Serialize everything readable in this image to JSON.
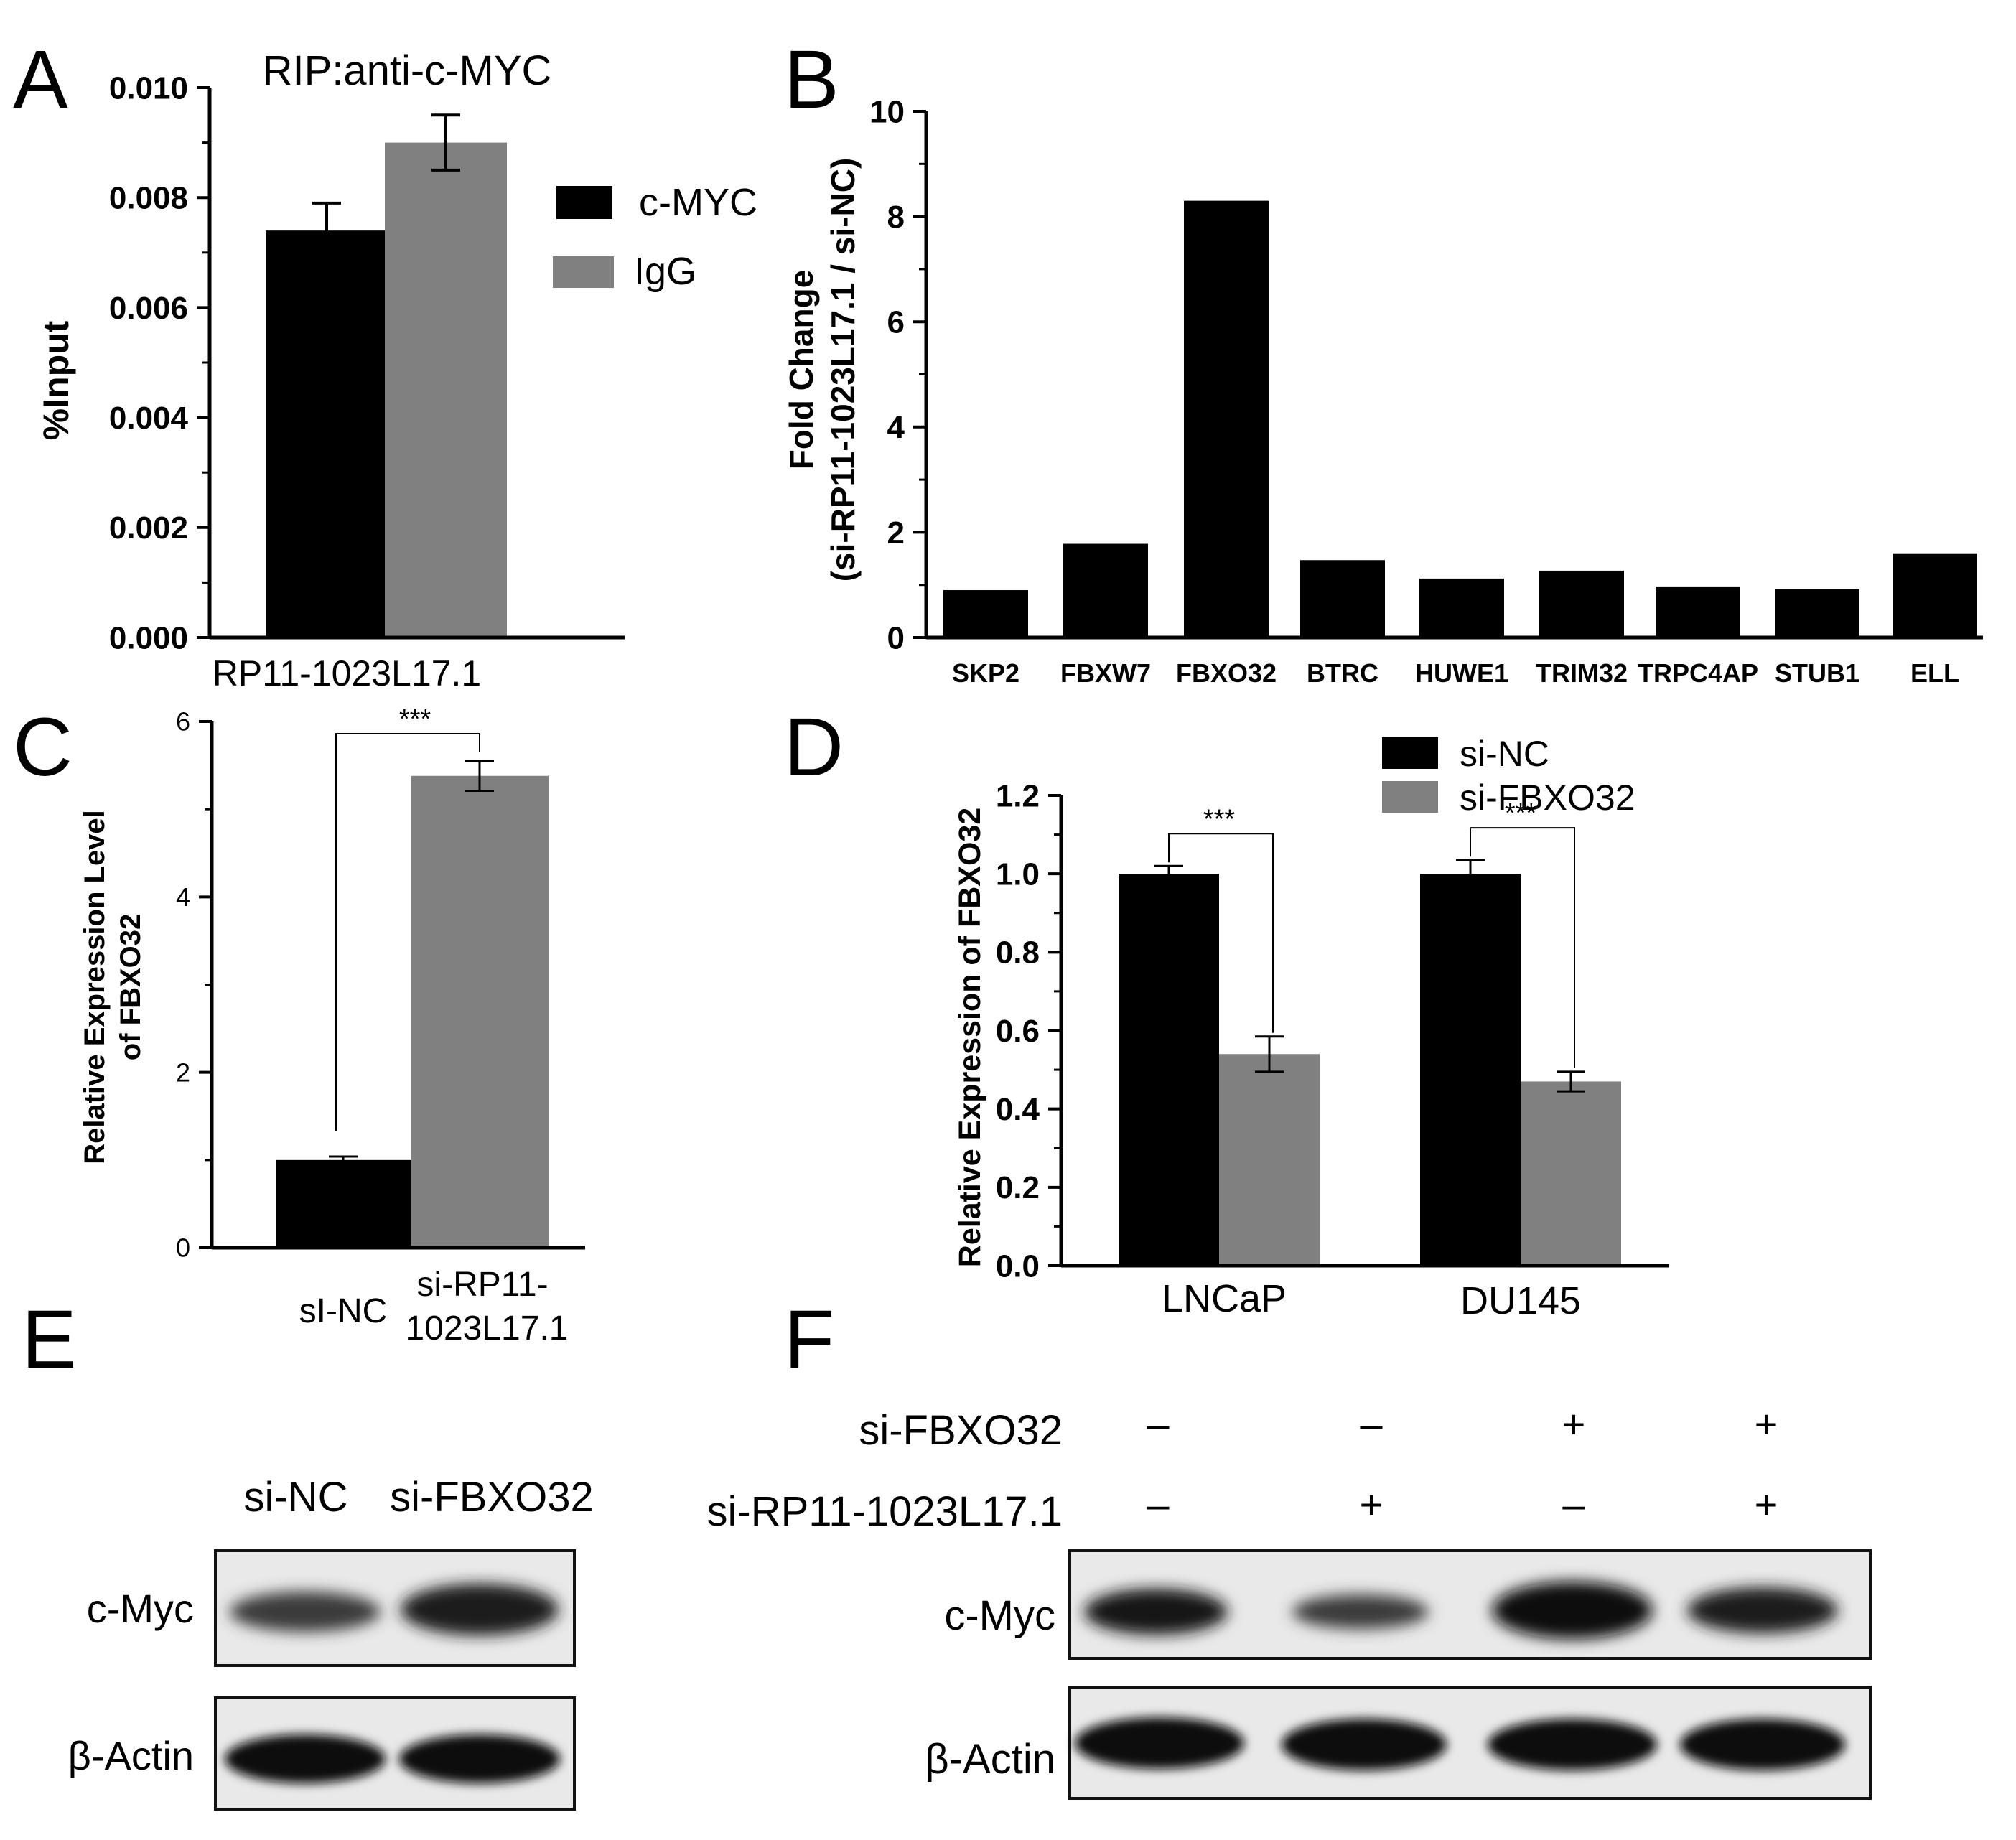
{
  "colors": {
    "black_series": "#000000",
    "gray_series": "#808080",
    "axis": "#000000"
  },
  "chart_data": [
    {
      "panel": "A",
      "type": "bar",
      "title": "RIP:anti-c-MYC",
      "ylabel": "%Input",
      "xlabel": "",
      "categories": [
        "RP11-1023L17.1"
      ],
      "ylim": [
        0,
        0.01
      ],
      "yticks": [
        "0.000",
        "0.002",
        "0.004",
        "0.006",
        "0.008",
        "0.010"
      ],
      "ytick_values": [
        0,
        0.002,
        0.004,
        0.006,
        0.008,
        0.01
      ],
      "legend_position": "right",
      "series": [
        {
          "name": "c-MYC",
          "color": "#000000",
          "values": [
            0.0074
          ],
          "errors": [
            0.0005
          ]
        },
        {
          "name": "IgG",
          "color": "#808080",
          "values": [
            0.009
          ],
          "errors": [
            0.0005
          ]
        }
      ]
    },
    {
      "panel": "B",
      "type": "bar",
      "ylabel_line1": "Fold Change",
      "ylabel_line2": "(si-RP11-1023L17.1 / si-NC)",
      "categories": [
        "SKP2",
        "FBXW7",
        "FBXO32",
        "BTRC",
        "HUWE1",
        "TRIM32",
        "TRPC4AP",
        "STUB1",
        "ELL"
      ],
      "values": [
        0.9,
        1.78,
        8.3,
        1.47,
        1.12,
        1.27,
        0.97,
        0.92,
        1.6
      ],
      "ylim": [
        0,
        10
      ],
      "yticks": [
        "0",
        "2",
        "4",
        "6",
        "8",
        "10"
      ],
      "ytick_values": [
        0,
        2,
        4,
        6,
        8,
        10
      ]
    },
    {
      "panel": "C",
      "type": "bar",
      "ylabel_line1": "Relative Expression Level",
      "ylabel_line2": "of FBXO32",
      "categories": [
        "sI-NC",
        "si-RP11-1023L17.1"
      ],
      "category_lines": [
        [
          "sI-NC"
        ],
        [
          "si-RP11-",
          "1023L17.1"
        ]
      ],
      "values": [
        1.0,
        5.38
      ],
      "errors": [
        0.04,
        0.17
      ],
      "colors": [
        "#000000",
        "#808080"
      ],
      "ylim": [
        0,
        6
      ],
      "yticks": [
        "0",
        "2",
        "4",
        "6"
      ],
      "ytick_values": [
        0,
        2,
        4,
        6
      ],
      "significance": "***"
    },
    {
      "panel": "D",
      "type": "bar",
      "ylabel": "Relative Expression of FBXO32",
      "categories": [
        "LNCaP",
        "DU145"
      ],
      "ylim": [
        0,
        1.2
      ],
      "yticks": [
        "0.0",
        "0.2",
        "0.4",
        "0.6",
        "0.8",
        "1.0",
        "1.2"
      ],
      "ytick_values": [
        0,
        0.2,
        0.4,
        0.6,
        0.8,
        1.0,
        1.2
      ],
      "legend_position": "top",
      "series": [
        {
          "name": "si-NC",
          "color": "#000000",
          "values": [
            1.0,
            1.0
          ],
          "errors": [
            0.02,
            0.035
          ]
        },
        {
          "name": "si-FBXO32",
          "color": "#808080",
          "values": [
            0.54,
            0.47
          ],
          "errors": [
            0.045,
            0.025
          ]
        }
      ],
      "significance": [
        "***",
        "***"
      ]
    }
  ],
  "panel_letters": [
    "A",
    "B",
    "C",
    "D",
    "E",
    "F"
  ],
  "blots": {
    "E": {
      "columns": [
        "si-NC",
        "si-FBXO32"
      ],
      "rows": [
        "c-Myc",
        "β-Actin"
      ]
    },
    "F": {
      "conditions": [
        {
          "label": "si-FBXO32",
          "marks": [
            "–",
            "–",
            "+",
            "+"
          ]
        },
        {
          "label": "si-RP11-1023L17.1",
          "marks": [
            "–",
            "+",
            "–",
            "+"
          ]
        }
      ],
      "rows": [
        "c-Myc",
        "β-Actin"
      ]
    }
  }
}
